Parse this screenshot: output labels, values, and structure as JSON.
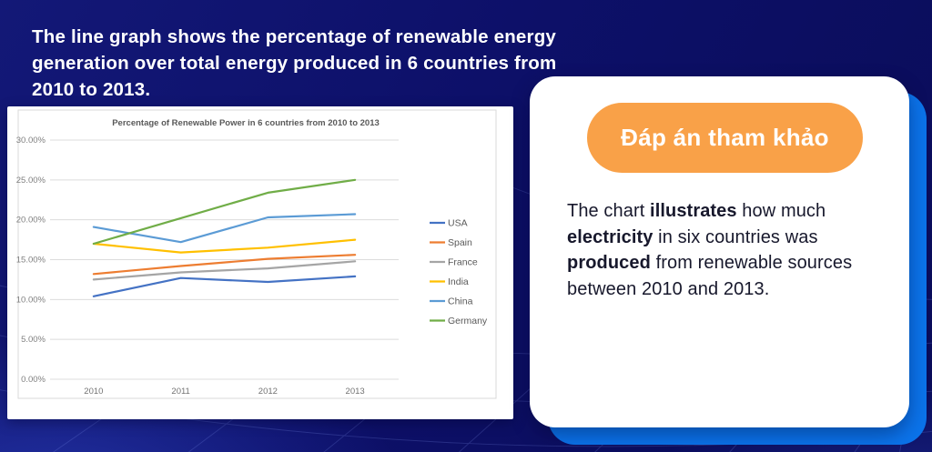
{
  "headline": {
    "lines": [
      "The line graph shows the percentage of renewable energy",
      "generation over total energy produced in 6 countries from",
      "2010 to 2013."
    ]
  },
  "chart_data": {
    "type": "line",
    "title": "Percentage of Renewable Power in 6 countries from 2010 to 2013",
    "categories": [
      "2010",
      "2011",
      "2012",
      "2013"
    ],
    "series": [
      {
        "name": "USA",
        "color": "#4472C4",
        "values": [
          10.4,
          12.7,
          12.2,
          12.9
        ]
      },
      {
        "name": "Spain",
        "color": "#ED7D31",
        "values": [
          13.2,
          14.2,
          15.1,
          15.6
        ]
      },
      {
        "name": "France",
        "color": "#A5A5A5",
        "values": [
          12.5,
          13.4,
          13.9,
          14.8
        ]
      },
      {
        "name": "India",
        "color": "#FFC000",
        "values": [
          17.0,
          15.9,
          16.5,
          17.5
        ]
      },
      {
        "name": "China",
        "color": "#5B9BD5",
        "values": [
          19.1,
          17.2,
          20.3,
          20.7
        ]
      },
      {
        "name": "Germany",
        "color": "#70AD47",
        "values": [
          17.0,
          20.2,
          23.4,
          25.0
        ]
      }
    ],
    "xlabel": "",
    "ylabel": "",
    "ylim": [
      0,
      30
    ],
    "ytick_step": 5,
    "ytick_suffix": "%",
    "grid": true,
    "legend_position": "right"
  },
  "answer_card": {
    "button_label": "Đáp án tham khảo",
    "body_lines": [
      [
        {
          "t": "The chart "
        },
        {
          "t": "illustrates",
          "b": true
        },
        {
          "t": " how much"
        }
      ],
      [
        {
          "t": "electricity",
          "b": true
        },
        {
          "t": " in six countries was"
        }
      ],
      [
        {
          "t": "produced",
          "b": true
        },
        {
          "t": " from renewable sources"
        }
      ],
      [
        {
          "t": "between 2010 and 2013."
        }
      ]
    ]
  },
  "colors": {
    "background_navy": "#0d1069",
    "accent_blue": "#0b73ea",
    "button_orange": "#F9A148",
    "card_white": "#ffffff",
    "headline_text": "#ffffff",
    "body_text": "#17182c",
    "chart_axis_text": "#808080",
    "chart_title_text": "#595959",
    "chart_grid": "#dcdcdc"
  }
}
